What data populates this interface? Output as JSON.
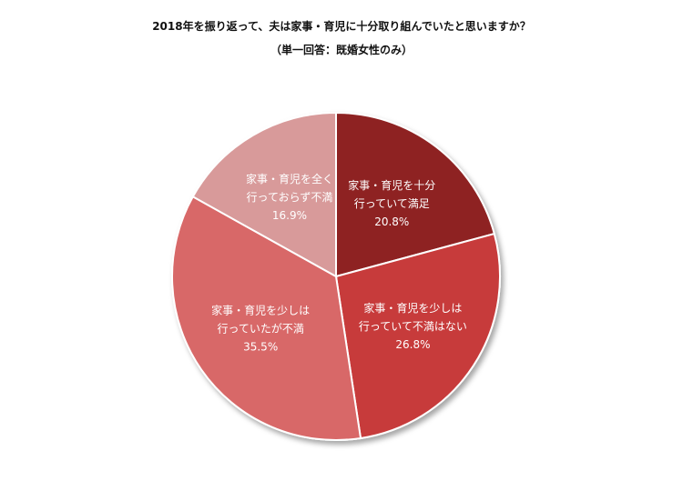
{
  "chart_data": {
    "type": "pie",
    "title": "2018年を振り返って、夫は家事・育児に十分取り組んでいたと思いますか？",
    "subtitle": "（単一回答：既婚女性のみ）",
    "slices": [
      {
        "label_lines": [
          "家事・育児を十分",
          "行っていて満足"
        ],
        "value": 20.8,
        "value_label": "20.8%",
        "color": "#8e2424"
      },
      {
        "label_lines": [
          "家事・育児を少しは",
          "行っていて不満はない"
        ],
        "value": 26.8,
        "value_label": "26.8%",
        "color": "#c73a3a"
      },
      {
        "label_lines": [
          "家事・育児を少しは",
          "行っていたが不満"
        ],
        "value": 35.5,
        "value_label": "35.5%",
        "color": "#d86868"
      },
      {
        "label_lines": [
          "家事・育児を全く",
          "行っておらず不満"
        ],
        "value": 16.9,
        "value_label": "16.9%",
        "color": "#d89a9a"
      }
    ],
    "start_angle_deg": 0,
    "direction": "clockwise",
    "legend": "none"
  }
}
